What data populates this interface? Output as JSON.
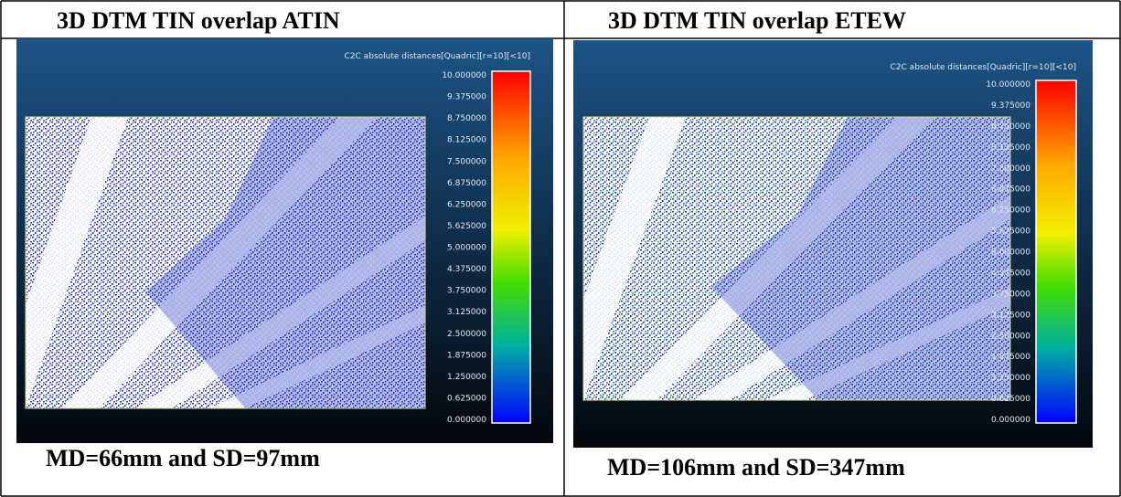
{
  "panels": [
    {
      "title": "3D DTM TIN overlap ATIN",
      "scale_title": "C2C absolute distances[Quadric][r=10][<10]",
      "scale_labels": [
        "10.000000",
        "9.375000",
        "8.750000",
        "8.125000",
        "7.500000",
        "6.875000",
        "6.250000",
        "5.625000",
        "5.000000",
        "4.375000",
        "3.750000",
        "3.125000",
        "2.500000",
        "1.875000",
        "1.250000",
        "0.625000",
        "0.000000"
      ],
      "caption": "MD=66mm and SD=97mm"
    },
    {
      "title": "3D DTM TIN overlap ETEW",
      "scale_title": "C2C absolute distances[Quadric][r=10][<10]",
      "scale_labels": [
        "10.000000",
        "9.375000",
        "8.750000",
        "8.125000",
        "7.500000",
        "6.875000",
        "6.250000",
        "5.625000",
        "5.000000",
        "4.375000",
        "3.750000",
        "3.125000",
        "2.500000",
        "1.875000",
        "1.250000",
        "0.625000",
        "0.000000"
      ],
      "caption": "MD=106mm and SD=347mm"
    }
  ]
}
